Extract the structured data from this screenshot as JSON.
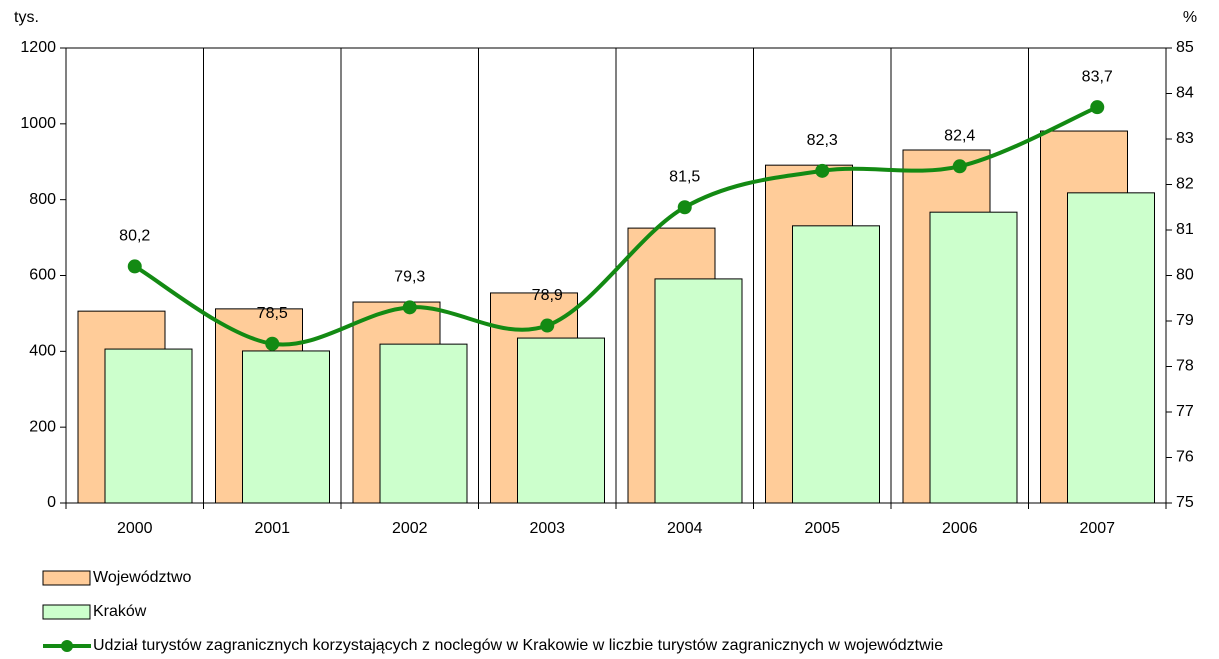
{
  "chart_data": {
    "type": "bar-line",
    "y_label": "tys.",
    "y2_label": "%",
    "categories": [
      "2000",
      "2001",
      "2002",
      "2003",
      "2004",
      "2005",
      "2006",
      "2007"
    ],
    "series": [
      {
        "name": "Województwo",
        "color": "#ffcc99",
        "type": "bar",
        "values": [
          506,
          512,
          530,
          554,
          725,
          891,
          931,
          981
        ]
      },
      {
        "name": "Kraków",
        "color": "#ccffcc",
        "type": "bar",
        "values": [
          406,
          401,
          419,
          435,
          591,
          731,
          767,
          818
        ]
      },
      {
        "name": "Udział turystów zagranicznych korzystających z noclegów w Krakowie w liczbie turystów zagranicznych w województwie",
        "color": "#138a13",
        "type": "line",
        "axis": "y2",
        "values": [
          80.2,
          78.5,
          79.3,
          78.9,
          81.5,
          82.3,
          82.4,
          83.7
        ],
        "value_labels": [
          "80,2",
          "78,5",
          "79,3",
          "78,9",
          "81,5",
          "82,3",
          "82,4",
          "83,7"
        ]
      }
    ],
    "ylim": [
      0,
      1200
    ],
    "yticks": [
      0,
      200,
      400,
      600,
      800,
      1000,
      1200
    ],
    "y2lim": [
      75,
      85
    ],
    "y2ticks": [
      75,
      76,
      77,
      78,
      79,
      80,
      81,
      82,
      83,
      84,
      85
    ],
    "legend": "bottom"
  }
}
